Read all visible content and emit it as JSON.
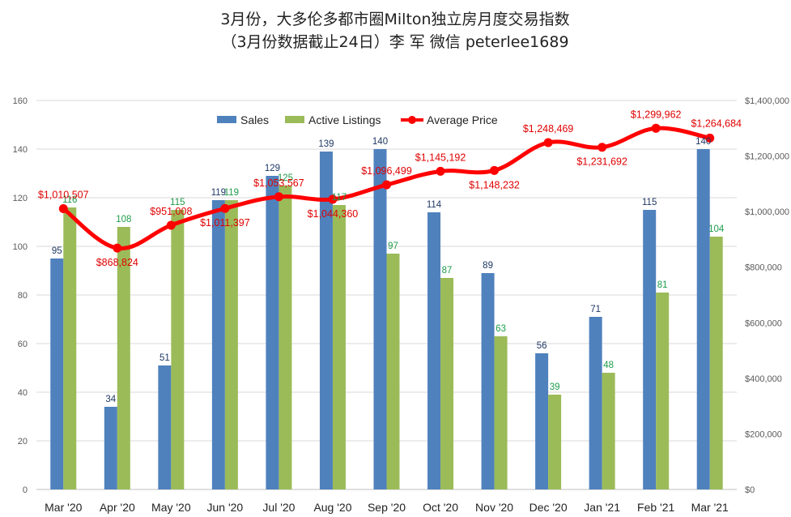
{
  "chart_data": {
    "type": "bar",
    "title": "3月份，大多伦多都市圈Milton独立房月度交易指数",
    "subtitle": "（3月份数据截止24日）李 军  微信  peterlee1689",
    "categories": [
      "Mar '20",
      "Apr '20",
      "May '20",
      "Jun '20",
      "Jul '20",
      "Aug '20",
      "Sep '20",
      "Oct '20",
      "Nov '20",
      "Dec '20",
      "Jan '21",
      "Feb '21",
      "Mar '21"
    ],
    "series": [
      {
        "name": "Sales",
        "type": "bar",
        "axis": "left",
        "color": "#4f81bd",
        "values": [
          95,
          34,
          51,
          119,
          129,
          139,
          140,
          114,
          89,
          56,
          71,
          115,
          140
        ]
      },
      {
        "name": "Active Listings",
        "type": "bar",
        "axis": "left",
        "color": "#9bbb59",
        "values": [
          116,
          108,
          115,
          119,
          125,
          117,
          97,
          87,
          63,
          39,
          48,
          81,
          104
        ]
      },
      {
        "name": "Average Price",
        "type": "line",
        "axis": "right",
        "color": "#ff0000",
        "values": [
          1010507,
          868824,
          951008,
          1011397,
          1053567,
          1044360,
          1096499,
          1145192,
          1148232,
          1248469,
          1231692,
          1299962,
          1264684
        ],
        "labels": [
          "$1,010,507",
          "$868,824",
          "$951,008",
          "$1,011,397",
          "$1,053,567",
          "$1,044,360",
          "$1,096,499",
          "$1,145,192",
          "$1,148,232",
          "$1,248,469",
          "$1,231,692",
          "$1,299,962",
          "$1,264,684"
        ]
      }
    ],
    "y_left": {
      "ylim": [
        0,
        160
      ],
      "ticks": [
        "0",
        "20",
        "40",
        "60",
        "80",
        "100",
        "120",
        "140",
        "160"
      ]
    },
    "y_right": {
      "ylim": [
        0,
        1400000
      ],
      "ticks": [
        "$0",
        "$200,000",
        "$400,000",
        "$600,000",
        "$800,000",
        "$1,000,000",
        "$1,200,000",
        "$1,400,000"
      ]
    },
    "legend": {
      "position": "top-center",
      "items": [
        "Sales",
        "Active Listings",
        "Average Price"
      ]
    },
    "grid": true
  }
}
